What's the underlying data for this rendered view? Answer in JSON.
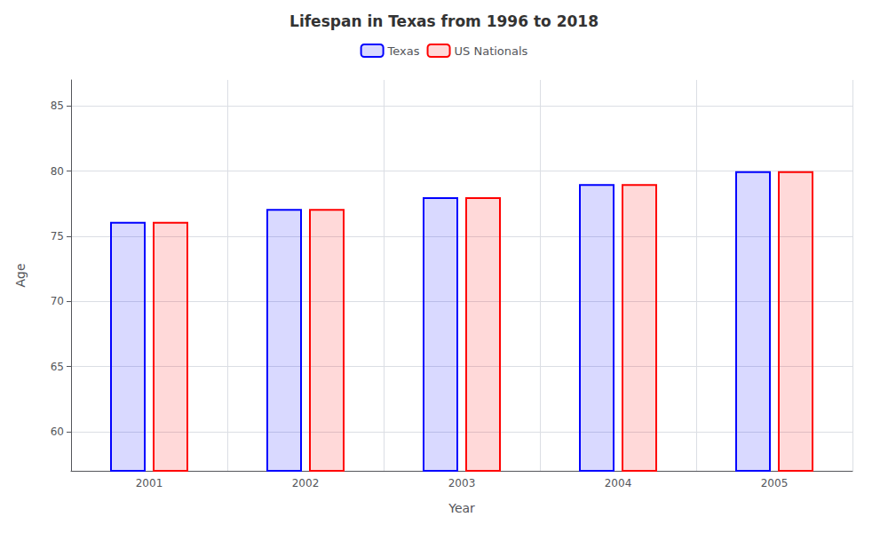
{
  "chart_data": {
    "type": "bar",
    "title": "Lifespan in Texas from 1996 to 2018",
    "xlabel": "Year",
    "ylabel": "Age",
    "categories": [
      "2001",
      "2002",
      "2003",
      "2004",
      "2005"
    ],
    "series": [
      {
        "name": "Texas",
        "color": "#0000ff",
        "values": [
          76.1,
          77.1,
          78.0,
          79.0,
          80.0
        ]
      },
      {
        "name": "US Nationals",
        "color": "#ff0000",
        "values": [
          76.1,
          77.1,
          78.0,
          79.0,
          80.0
        ]
      }
    ],
    "ylim": [
      57,
      87
    ],
    "yticks": [
      60,
      65,
      70,
      75,
      80,
      85
    ],
    "grid": true,
    "legend": "top"
  }
}
